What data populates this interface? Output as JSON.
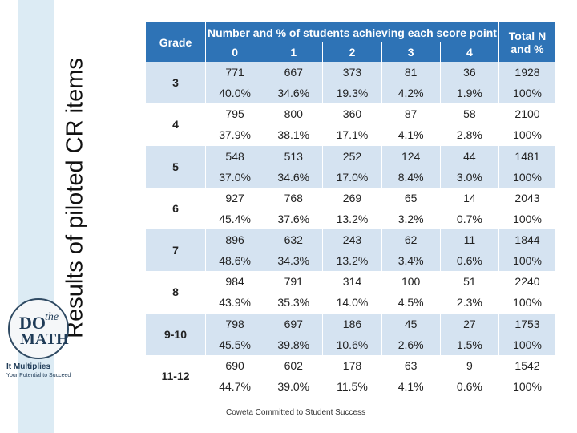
{
  "slide_title": "Results of piloted CR items",
  "logo": {
    "do": "DO",
    "the": "the",
    "math": "MATH",
    "tagline": "It Multiplies",
    "subtagline": "Your Potential to Succeed"
  },
  "table": {
    "grade_header": "Grade",
    "score_header": "Number and % of students achieving each score point",
    "total_header": "Total N and %",
    "score_points": [
      "0",
      "1",
      "2",
      "3",
      "4"
    ],
    "rows": [
      {
        "grade": "3",
        "counts": [
          "771",
          "667",
          "373",
          "81",
          "36",
          "1928"
        ],
        "percents": [
          "40.0%",
          "34.6%",
          "19.3%",
          "4.2%",
          "1.9%",
          "100%"
        ]
      },
      {
        "grade": "4",
        "counts": [
          "795",
          "800",
          "360",
          "87",
          "58",
          "2100"
        ],
        "percents": [
          "37.9%",
          "38.1%",
          "17.1%",
          "4.1%",
          "2.8%",
          "100%"
        ]
      },
      {
        "grade": "5",
        "counts": [
          "548",
          "513",
          "252",
          "124",
          "44",
          "1481"
        ],
        "percents": [
          "37.0%",
          "34.6%",
          "17.0%",
          "8.4%",
          "3.0%",
          "100%"
        ]
      },
      {
        "grade": "6",
        "counts": [
          "927",
          "768",
          "269",
          "65",
          "14",
          "2043"
        ],
        "percents": [
          "45.4%",
          "37.6%",
          "13.2%",
          "3.2%",
          "0.7%",
          "100%"
        ]
      },
      {
        "grade": "7",
        "counts": [
          "896",
          "632",
          "243",
          "62",
          "11",
          "1844"
        ],
        "percents": [
          "48.6%",
          "34.3%",
          "13.2%",
          "3.4%",
          "0.6%",
          "100%"
        ]
      },
      {
        "grade": "8",
        "counts": [
          "984",
          "791",
          "314",
          "100",
          "51",
          "2240"
        ],
        "percents": [
          "43.9%",
          "35.3%",
          "14.0%",
          "4.5%",
          "2.3%",
          "100%"
        ]
      },
      {
        "grade": "9-10",
        "counts": [
          "798",
          "697",
          "186",
          "45",
          "27",
          "1753"
        ],
        "percents": [
          "45.5%",
          "39.8%",
          "10.6%",
          "2.6%",
          "1.5%",
          "100%"
        ]
      },
      {
        "grade": "11-12",
        "counts": [
          "690",
          "602",
          "178",
          "63",
          "9",
          "1542"
        ],
        "percents": [
          "44.7%",
          "39.0%",
          "11.5%",
          "4.1%",
          "0.6%",
          "100%"
        ]
      }
    ]
  },
  "footer": "Coweta Committed to Student Success",
  "colors": {
    "header_bg": "#2e73b6",
    "band_bg": "#d5e3f1",
    "side_band": "#dcebf4"
  }
}
